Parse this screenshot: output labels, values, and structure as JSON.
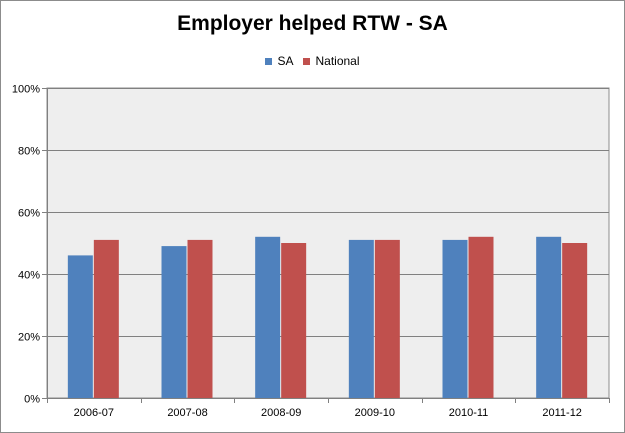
{
  "chart_data": {
    "type": "bar",
    "title": "Employer helped RTW - SA",
    "categories": [
      "2006-07",
      "2007-08",
      "2008-09",
      "2009-10",
      "2010-11",
      "2011-12"
    ],
    "series": [
      {
        "name": "SA",
        "color": "#4f81bd",
        "values": [
          46,
          49,
          52,
          51,
          51,
          52
        ]
      },
      {
        "name": "National",
        "color": "#c0504d",
        "values": [
          51,
          51,
          50,
          51,
          52,
          50
        ]
      }
    ],
    "ylim": [
      0,
      100
    ],
    "yticks": [
      "0%",
      "20%",
      "40%",
      "60%",
      "80%",
      "100%"
    ],
    "ytick_values": [
      0,
      20,
      40,
      60,
      80,
      100
    ],
    "grid": true,
    "legend_position": "top-center",
    "plot_background": "#eeeeee"
  }
}
